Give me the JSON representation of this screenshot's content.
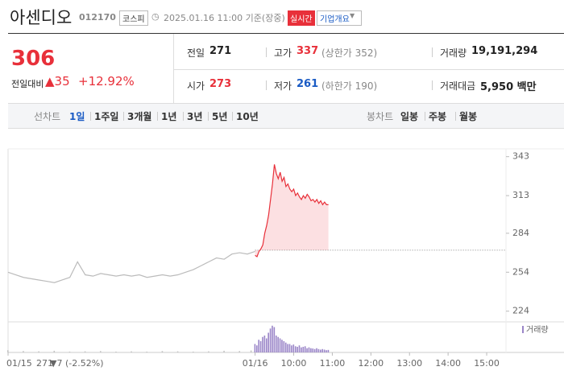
{
  "header": {
    "name": "아센디오",
    "code": "012170",
    "market": "코스피",
    "timestamp": "2025.01.16 11:00 기준(장중)",
    "realtime": "실시간",
    "company_info": "기업개요"
  },
  "quote": {
    "price": "306",
    "change_label": "전일대비",
    "change": "▲35",
    "change_rate": "+12.92%",
    "items": [
      {
        "label": "전일",
        "value": "271"
      },
      {
        "label": "고가",
        "value": "337",
        "note": "(상한가 352)"
      },
      {
        "label": "거래량",
        "value": "19,191,294"
      },
      {
        "label": "시가",
        "value": "273"
      },
      {
        "label": "저가",
        "value": "261",
        "note": "(하한가 190)"
      },
      {
        "label": "거래대금",
        "value": "5,950 백만"
      }
    ]
  },
  "tabs": {
    "line_label": "선차트",
    "line": [
      "1일",
      "1주일",
      "3개월",
      "1년",
      "3년",
      "5년",
      "10년"
    ],
    "candle_label": "봉차트",
    "candle": [
      "일봉",
      "주봉",
      "월봉"
    ]
  },
  "chart_data": {
    "type": "line",
    "ylim": [
      217,
      349
    ],
    "yticks": [
      224,
      254,
      284,
      313,
      343
    ],
    "xlim": [
      2.6,
      15.5
    ],
    "xticks": [
      {
        "value": 2.6,
        "label": "01/15"
      },
      {
        "value": 9,
        "label": "01/16"
      },
      {
        "value": 10,
        "label": "10:00"
      },
      {
        "value": 11,
        "label": "11:00"
      },
      {
        "value": 12,
        "label": "12:00"
      },
      {
        "value": 13,
        "label": "13:00"
      },
      {
        "value": 14,
        "label": "14:00"
      },
      {
        "value": 15,
        "label": "15:00"
      }
    ],
    "base_value": 271,
    "series": [
      {
        "color": "#bbbbbb",
        "x": [
          2.6,
          2.8,
          3.0,
          3.2,
          3.4,
          3.6,
          3.8,
          4.0,
          4.2,
          4.4,
          4.6,
          4.8,
          5.0,
          5.2,
          5.4,
          5.6,
          5.8,
          6.0,
          6.2,
          6.4,
          6.6,
          6.8,
          7.0,
          7.2,
          7.4,
          7.6,
          7.8,
          8.0,
          8.2,
          8.4,
          8.6,
          8.8,
          9.0
        ],
        "values": [
          254,
          252,
          250,
          249,
          248,
          247,
          246,
          248,
          250,
          262,
          252,
          251,
          253,
          252,
          251,
          252,
          251,
          252,
          250,
          251,
          252,
          251,
          252,
          254,
          256,
          259,
          262,
          265,
          264,
          268,
          269,
          268,
          270
        ]
      },
      {
        "color": "#e8303a",
        "x": [
          9.0,
          9.05,
          9.1,
          9.15,
          9.2,
          9.25,
          9.3,
          9.35,
          9.4,
          9.45,
          9.5,
          9.55,
          9.6,
          9.65,
          9.7,
          9.75,
          9.8,
          9.85,
          9.9,
          9.95,
          10.0,
          10.05,
          10.1,
          10.15,
          10.2,
          10.25,
          10.3,
          10.35,
          10.4,
          10.45,
          10.5,
          10.55,
          10.6,
          10.65,
          10.7,
          10.75,
          10.8,
          10.85,
          10.9
        ],
        "values": [
          267,
          266,
          270,
          272,
          275,
          284,
          290,
          298,
          310,
          322,
          337,
          330,
          326,
          331,
          324,
          327,
          320,
          322,
          318,
          316,
          318,
          313,
          315,
          312,
          310,
          313,
          311,
          314,
          312,
          309,
          310,
          308,
          310,
          307,
          309,
          306,
          308,
          306,
          306
        ]
      }
    ],
    "volume": {
      "label": "거래량",
      "ylim": [
        0,
        100
      ],
      "series": [
        {
          "color": "#c4c4c4",
          "x": [
            2.6,
            3.0,
            3.4,
            3.8,
            4.2,
            4.6,
            5.0,
            5.4,
            5.8,
            6.2,
            6.6,
            7.0,
            7.4,
            7.8,
            8.2,
            8.6,
            8.9
          ],
          "values": [
            8,
            5,
            4,
            6,
            3,
            4,
            5,
            3,
            4,
            3,
            5,
            4,
            3,
            4,
            6,
            5,
            7
          ]
        },
        {
          "color": "#9a85c8",
          "x": [
            9.0,
            9.05,
            9.1,
            9.15,
            9.2,
            9.25,
            9.3,
            9.35,
            9.4,
            9.45,
            9.5,
            9.55,
            9.6,
            9.65,
            9.7,
            9.75,
            9.8,
            9.85,
            9.9,
            9.95,
            10.0,
            10.05,
            10.1,
            10.15,
            10.2,
            10.25,
            10.3,
            10.35,
            10.4,
            10.45,
            10.5,
            10.55,
            10.6,
            10.65,
            10.7,
            10.75,
            10.8,
            10.85,
            10.9
          ],
          "values": [
            30,
            25,
            45,
            40,
            55,
            60,
            50,
            70,
            85,
            95,
            90,
            60,
            55,
            50,
            45,
            40,
            35,
            30,
            30,
            25,
            28,
            22,
            20,
            25,
            18,
            20,
            22,
            15,
            18,
            15,
            14,
            12,
            15,
            12,
            10,
            12,
            10,
            8,
            9
          ]
        }
      ]
    },
    "footer": {
      "close": "271",
      "change": "▼7",
      "rate": "(-2.52%)"
    }
  }
}
